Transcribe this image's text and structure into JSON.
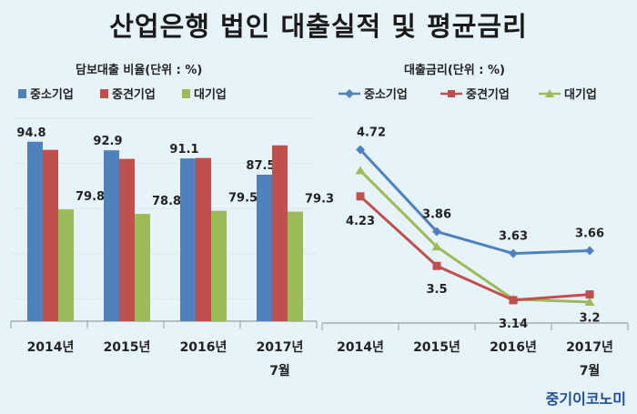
{
  "title": "산업은행 법인 대출실적 및 평균금리",
  "source": "중기이코노미",
  "colors": {
    "sme": "#4f81bd",
    "mid": "#c0504d",
    "large": "#9bbb59"
  },
  "chart_data": [
    {
      "type": "bar",
      "title": "담보대출 비율(단위 : %)",
      "categories": [
        "2014년",
        "2015년",
        "2016년",
        "2017년 7월"
      ],
      "series": [
        {
          "name": "중소기업",
          "values": [
            94.8,
            92.9,
            91.1,
            87.5
          ]
        },
        {
          "name": "중견기업",
          "values": [
            93.0,
            91.0,
            91.2,
            94.0
          ]
        },
        {
          "name": "대기업",
          "values": [
            79.8,
            78.8,
            79.5,
            79.3
          ]
        }
      ],
      "data_labels": [
        [
          "94.8",
          "92.9",
          "91.1",
          "87.5"
        ],
        [
          "",
          "",
          "",
          ""
        ],
        [
          "79.8",
          "78.8",
          "79.5",
          "79.3"
        ]
      ],
      "ylim": [
        55,
        100
      ],
      "legend": "top"
    },
    {
      "type": "line",
      "title": "대출금리(단위 : %)",
      "categories": [
        "2014년",
        "2015년",
        "2016년",
        "2017년 7월"
      ],
      "series": [
        {
          "name": "중소기업",
          "values": [
            4.72,
            3.86,
            3.63,
            3.66
          ]
        },
        {
          "name": "중견기업",
          "values": [
            4.23,
            3.5,
            3.14,
            3.2
          ]
        },
        {
          "name": "대기업",
          "values": [
            4.5,
            3.7,
            3.15,
            3.12
          ]
        }
      ],
      "data_labels": [
        [
          "4.72",
          "3.86",
          "3.63",
          "3.66"
        ],
        [
          "4.23",
          "3.5",
          "3.14",
          "3.2"
        ],
        [
          "",
          "",
          "",
          ""
        ]
      ],
      "ylim": [
        2.9,
        5.05
      ],
      "legend": "top"
    }
  ]
}
